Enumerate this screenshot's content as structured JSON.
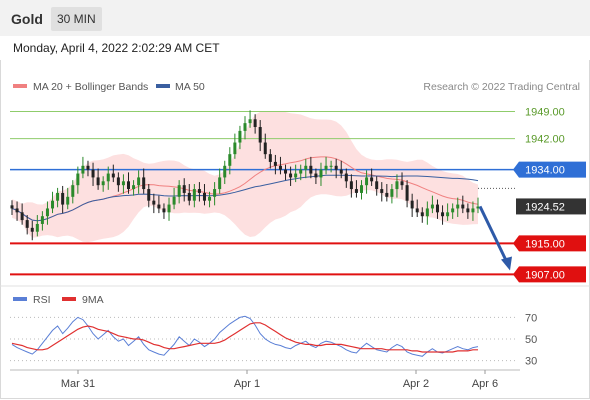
{
  "header": {
    "title": "Gold",
    "timeframe": "30 MIN",
    "datetime": "Monday, April 4, 2022 2:02:29 AM CET"
  },
  "legend": {
    "ma20": "MA 20 + Bollinger Bands",
    "ma50": "MA 50",
    "credit": "Research © 2022 Trading Central",
    "rsi": "RSI",
    "ma9": "9MA"
  },
  "colors": {
    "resistance_green": "#8fcc6b",
    "pivot_blue": "#2f6fd6",
    "support_red": "#e01010",
    "candle_up": "#2b8a2b",
    "candle_down": "#222222",
    "bollinger_fill": "#fde0e0",
    "ma20": "#f08080",
    "ma50": "#3a5fa0",
    "rsi_line": "#5a7fd6",
    "rsi_ma": "#e03030",
    "arrow": "#2e5aa8"
  },
  "chart_data": [
    {
      "type": "candlestick",
      "x_ticks": [
        "Mar 31",
        "Apr 1",
        "Apr 2",
        "Apr 6"
      ],
      "ylim": [
        1904,
        1953
      ],
      "levels": [
        {
          "label": "1949.00",
          "value": 1949.0,
          "kind": "resistance"
        },
        {
          "label": "1942.00",
          "value": 1942.0,
          "kind": "resistance"
        },
        {
          "label": "1934.00",
          "value": 1934.0,
          "kind": "pivot"
        },
        {
          "label": "1924.52",
          "value": 1924.52,
          "kind": "last_price"
        },
        {
          "label": "1915.00",
          "value": 1915.0,
          "kind": "support"
        },
        {
          "label": "1907.00",
          "value": 1907.0,
          "kind": "support"
        }
      ],
      "close": [
        1924,
        1923,
        1921,
        1919,
        1918,
        1920,
        1922,
        1924,
        1926,
        1928,
        1925,
        1927,
        1930,
        1933,
        1935,
        1934,
        1932,
        1930,
        1931,
        1933,
        1932,
        1930,
        1931,
        1929,
        1930,
        1932,
        1929,
        1926,
        1925,
        1924,
        1923,
        1925,
        1927,
        1930,
        1928,
        1926,
        1929,
        1928,
        1926,
        1927,
        1929,
        1932,
        1935,
        1938,
        1941,
        1944,
        1946,
        1947,
        1945,
        1941,
        1938,
        1936,
        1935,
        1934,
        1933,
        1932,
        1933,
        1934,
        1935,
        1933,
        1932,
        1934,
        1935,
        1935,
        1934,
        1933,
        1931,
        1929,
        1928,
        1930,
        1932,
        1931,
        1929,
        1928,
        1927,
        1929,
        1931,
        1930,
        1926,
        1924,
        1923,
        1922,
        1924,
        1925,
        1923,
        1922,
        1923,
        1924,
        1925,
        1924,
        1923,
        1924,
        1924.5
      ],
      "series_names": [
        "MA 20 + Bollinger Bands",
        "MA 50"
      ]
    },
    {
      "type": "line",
      "series_names": [
        "RSI",
        "9MA"
      ],
      "ylim": [
        25,
        75
      ],
      "y_ticks": [
        70,
        50,
        30
      ],
      "rsi": [
        45,
        42,
        40,
        38,
        36,
        40,
        46,
        52,
        58,
        62,
        55,
        60,
        66,
        70,
        68,
        62,
        55,
        50,
        54,
        58,
        52,
        48,
        50,
        44,
        48,
        52,
        45,
        40,
        38,
        36,
        35,
        40,
        45,
        52,
        48,
        44,
        50,
        47,
        43,
        46,
        50,
        56,
        60,
        64,
        67,
        70,
        71,
        69,
        63,
        55,
        50,
        47,
        45,
        44,
        42,
        41,
        44,
        46,
        48,
        44,
        42,
        46,
        48,
        47,
        45,
        43,
        40,
        38,
        37,
        42,
        46,
        43,
        40,
        39,
        38,
        42,
        45,
        43,
        38,
        36,
        35,
        34,
        38,
        41,
        38,
        37,
        39,
        41,
        43,
        41,
        40,
        42,
        43
      ],
      "rsi_ma": [
        46,
        45,
        44,
        42,
        41,
        40,
        40,
        41,
        44,
        47,
        50,
        53,
        56,
        59,
        61,
        62,
        61,
        59,
        58,
        57,
        55,
        53,
        52,
        51,
        50,
        50,
        49,
        47,
        45,
        44,
        42,
        41,
        41,
        42,
        43,
        44,
        45,
        46,
        46,
        46,
        46,
        47,
        49,
        52,
        55,
        58,
        61,
        64,
        65,
        65,
        63,
        60,
        57,
        54,
        51,
        49,
        47,
        46,
        45,
        45,
        44,
        44,
        45,
        45,
        45,
        45,
        44,
        43,
        42,
        41,
        41,
        41,
        41,
        41,
        40,
        40,
        40,
        40,
        40,
        39,
        39,
        38,
        38,
        38,
        38,
        38,
        38,
        38,
        39,
        39,
        39,
        40,
        40
      ]
    }
  ]
}
